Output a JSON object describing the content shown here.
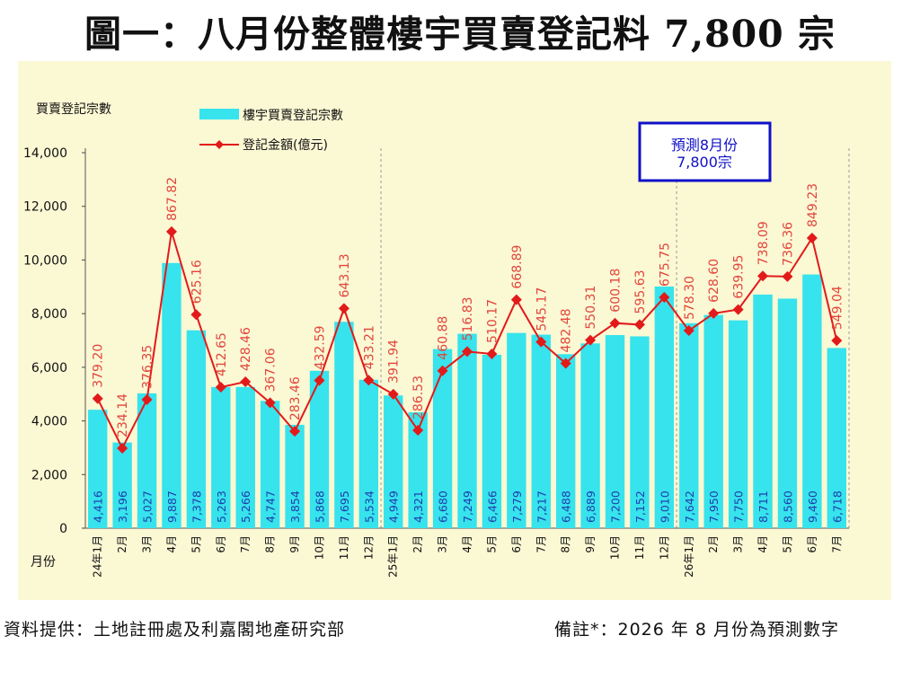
{
  "title": "圖一：八月份整體樓宇買賣登記料 7,800 宗",
  "footer": {
    "source": "資料提供：土地註冊處及利嘉閣地產研究部",
    "note": "備註*：2026 年 8 月份為預測數字"
  },
  "colors": {
    "background": "#fbf8d4",
    "bar": "#37e3ec",
    "line": "#e21a1a",
    "bar_label": "#1f3fae",
    "value_label": "#e2463c",
    "forecast_box": "#1010c8"
  },
  "chart_data": {
    "type": "bar",
    "ylabel": "買賣登記宗數",
    "xlabel": "月份",
    "ylim": [
      0,
      14000
    ],
    "yticks": [
      "0",
      "2,000",
      "4,000",
      "6,000",
      "8,000",
      "10,000",
      "12,000",
      "14,000"
    ],
    "legend_placement": "top-left",
    "categories": [
      "24年1月",
      "2月",
      "3月",
      "4月",
      "5月",
      "6月",
      "7月",
      "8月",
      "9月",
      "10月",
      "11月",
      "12月",
      "25年1月",
      "2月",
      "3月",
      "4月",
      "5月",
      "6月",
      "7月",
      "8月",
      "9月",
      "10月",
      "11月",
      "12月",
      "26年1月",
      "2月",
      "3月",
      "4月",
      "5月",
      "6月",
      "7月"
    ],
    "series": [
      {
        "name": "樓宇買賣登記宗數",
        "type": "bar",
        "values": [
          4416,
          3196,
          5027,
          9887,
          7378,
          5263,
          5266,
          4747,
          3854,
          5868,
          7695,
          5534,
          4949,
          4321,
          6680,
          7249,
          6466,
          7279,
          7217,
          6488,
          6889,
          7200,
          7152,
          9010,
          7642,
          7950,
          7750,
          8711,
          8560,
          9460,
          6718
        ],
        "labels": [
          "4,416",
          "3,196",
          "5,027",
          "9,887",
          "7,378",
          "5,263",
          "5,266",
          "4,747",
          "3,854",
          "5,868",
          "7,695",
          "5,534",
          "4,949",
          "4,321",
          "6,680",
          "7,249",
          "6,466",
          "7,279",
          "7,217",
          "6,488",
          "6,889",
          "7,200",
          "7,152",
          "9,010",
          "7,642",
          "7,950",
          "7,750",
          "8,711",
          "8,560",
          "9,460",
          "6,718"
        ]
      },
      {
        "name": "登記金額(億元)",
        "type": "line",
        "values": [
          379.2,
          234.14,
          376.35,
          867.82,
          625.16,
          412.65,
          428.46,
          367.06,
          283.46,
          432.59,
          643.13,
          433.21,
          391.94,
          286.53,
          460.88,
          516.83,
          510.17,
          668.89,
          545.17,
          482.48,
          550.31,
          600.18,
          595.63,
          675.75,
          578.3,
          628.6,
          639.95,
          738.09,
          736.36,
          849.23,
          549.04
        ],
        "labels": [
          "379.20",
          "234.14",
          "376.35",
          "867.82",
          "625.16",
          "412.65",
          "428.46",
          "367.06",
          "283.46",
          "432.59",
          "643.13",
          "433.21",
          "391.94",
          "286.53",
          "460.88",
          "516.83",
          "510.17",
          "668.89",
          "545.17",
          "482.48",
          "550.31",
          "600.18",
          "595.63",
          "675.75",
          "578.30",
          "628.60",
          "639.95",
          "738.09",
          "736.36",
          "849.23",
          "549.04"
        ]
      }
    ],
    "annotation": {
      "line1": "預測8月份",
      "line2": "7,800宗"
    }
  }
}
